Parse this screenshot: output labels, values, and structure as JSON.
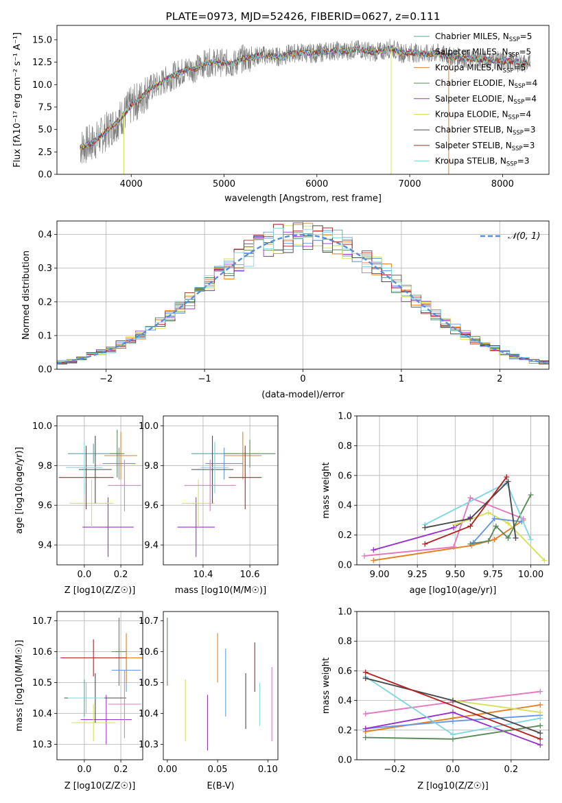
{
  "chart_data": [
    {
      "id": "spectrum",
      "type": "line",
      "title": "PLATE=0973, MJD=52426, FIBERID=0627, z=0.111",
      "xlabel": "wavelength [Angstrom, rest frame]",
      "ylabel": "Flux [fλ10⁻¹⁷ erg cm⁻² s⁻¹ A⁻¹]",
      "xlim": [
        3200,
        8500
      ],
      "ylim": [
        0,
        16.6
      ],
      "xticks": [
        4000,
        5000,
        6000,
        7000,
        8000
      ],
      "yticks": [
        0.0,
        2.5,
        5.0,
        7.5,
        10.0,
        12.5,
        15.0
      ],
      "legend_position": "right",
      "data_curve": {
        "name": "data",
        "color": "#7f7f7f",
        "x": [
          3450,
          3600,
          3700,
          3800,
          3900,
          4000,
          4100,
          4200,
          4300,
          4400,
          4500,
          4600,
          4700,
          4800,
          4900,
          5000,
          5100,
          5200,
          5300,
          5400,
          5500,
          5600,
          5700,
          5800,
          5900,
          6000,
          6100,
          6200,
          6300,
          6400,
          6500,
          6600,
          6700,
          6800,
          6900,
          7000,
          7100,
          7200,
          7300,
          7400,
          7500,
          7600,
          7700,
          7800,
          7900,
          8000,
          8100,
          8200,
          8300
        ],
        "y": [
          3.0,
          3.6,
          4.5,
          5.4,
          6.4,
          7.7,
          8.4,
          9.6,
          10.0,
          10.7,
          11.2,
          11.7,
          11.8,
          12.4,
          12.5,
          12.4,
          12.3,
          12.9,
          13.0,
          13.3,
          13.2,
          13.1,
          13.4,
          13.6,
          13.5,
          13.5,
          13.7,
          13.8,
          13.7,
          13.9,
          13.9,
          13.6,
          13.7,
          14.1,
          13.5,
          13.6,
          13.5,
          13.4,
          13.5,
          13.2,
          13.1,
          12.9,
          12.9,
          12.8,
          12.7,
          12.6,
          12.6,
          12.4,
          12.3
        ]
      },
      "series": [
        {
          "name": "Chabrier MILES, N_SSP=5",
          "label_main": "Chabrier MILES, N",
          "label_sub": "SSP",
          "label_tail": "=5",
          "color": "#5f9ea0"
        },
        {
          "name": "Salpeter MILES, N_SSP=5",
          "label_main": "Salpeter MILES, N",
          "label_sub": "SSP",
          "label_tail": "=5",
          "color": "#6495ed"
        },
        {
          "name": "Kroupa MILES, N_SSP=5",
          "label_main": "Kroupa MILES, N",
          "label_sub": "SSP",
          "label_tail": "=5",
          "color": "#e67e22"
        },
        {
          "name": "Chabrier ELODIE, N_SSP=4",
          "label_main": "Chabrier ELODIE, N",
          "label_sub": "SSP",
          "label_tail": "=4",
          "color": "#5a8a5a"
        },
        {
          "name": "Salpeter ELODIE, N_SSP=4",
          "label_main": "Salpeter ELODIE, N",
          "label_sub": "SSP",
          "label_tail": "=4",
          "color": "#9932cc"
        },
        {
          "name": "Kroupa ELODIE, N_SSP=4",
          "label_main": "Kroupa ELODIE, N",
          "label_sub": "SSP",
          "label_tail": "=4",
          "color": "#d4e157"
        },
        {
          "name": "Chabrier STELIB, N_SSP=3",
          "label_main": "Chabrier STELIB, N",
          "label_sub": "SSP",
          "label_tail": "=3",
          "color": "#4a4a4a"
        },
        {
          "name": "Salpeter STELIB, N_SSP=3",
          "label_main": "Salpeter STELIB, N",
          "label_sub": "SSP",
          "label_tail": "=3",
          "color": "#b22222"
        },
        {
          "name": "Kroupa STELIB, N_SSP=3",
          "label_main": "Kroupa STELIB, N",
          "label_sub": "SSP",
          "label_tail": "=3",
          "color": "#7fd6e0"
        }
      ]
    },
    {
      "id": "residuals",
      "type": "histogram",
      "xlabel": "(data-model)/error",
      "ylabel": "Normed distribution",
      "xlim": [
        -2.5,
        2.5
      ],
      "ylim": [
        0,
        0.44
      ],
      "xticks": [
        -2,
        -1,
        0,
        1,
        2
      ],
      "yticks": [
        0.0,
        0.1,
        0.2,
        0.3,
        0.4
      ],
      "grid": true,
      "reference_curve": {
        "name": "𝒩(0, 1)",
        "color": "#5b8bd6",
        "style": "dashed",
        "legend_position": "top-right"
      }
    },
    {
      "id": "age_vs_Z",
      "type": "errorbar",
      "xlabel": "Z [log10(Z/Z☉)]",
      "ylabel": "age [log10(age/yr)]",
      "xlim": [
        -0.15,
        0.32
      ],
      "ylim": [
        9.3,
        10.05
      ],
      "xticks": [
        0.0,
        0.2
      ],
      "yticks": [
        9.4,
        9.6,
        9.8,
        10.0
      ],
      "grid": true,
      "points": [
        {
          "x": 0.05,
          "xerr": 0.14,
          "y": 9.86,
          "yerr": 0.05,
          "color": "#5f9ea0"
        },
        {
          "x": 0.19,
          "xerr": 0.09,
          "y": 9.81,
          "yerr": 0.08,
          "color": "#6495ed"
        },
        {
          "x": 0.2,
          "xerr": 0.09,
          "y": 9.85,
          "yerr": 0.12,
          "color": "#e67e22"
        },
        {
          "x": 0.18,
          "xerr": 0.04,
          "y": 9.86,
          "yerr": 0.12,
          "color": "#5a8a5a"
        },
        {
          "x": 0.13,
          "xerr": 0.14,
          "y": 9.49,
          "yerr": 0.15,
          "color": "#9932cc"
        },
        {
          "x": 0.04,
          "xerr": 0.12,
          "y": 9.61,
          "yerr": 0.12,
          "color": "#d4e157"
        },
        {
          "x": 0.06,
          "xerr": 0.09,
          "y": 9.78,
          "yerr": 0.17,
          "color": "#4a4a4a"
        },
        {
          "x": 0.01,
          "xerr": 0.15,
          "y": 9.74,
          "yerr": 0.16,
          "color": "#b22222"
        },
        {
          "x": 0.0,
          "xerr": 0.1,
          "y": 9.79,
          "yerr": 0.13,
          "color": "#7fd6e0"
        },
        {
          "x": 0.22,
          "xerr": 0.09,
          "y": 9.7,
          "yerr": 0.13,
          "color": "#e377c2"
        }
      ]
    },
    {
      "id": "age_vs_mass",
      "type": "errorbar",
      "xlabel": "mass [log10(M/M☉)]",
      "ylabel": "",
      "xlim": [
        10.23,
        10.72
      ],
      "ylim": [
        9.3,
        10.05
      ],
      "xticks": [
        10.4,
        10.6
      ],
      "yticks": [
        9.4,
        9.6,
        9.8,
        10.0
      ],
      "grid": true,
      "points": [
        {
          "x": 10.45,
          "xerr": 0.1,
          "y": 9.86,
          "yerr": 0.05,
          "color": "#5f9ea0"
        },
        {
          "x": 10.49,
          "xerr": 0.08,
          "y": 9.81,
          "yerr": 0.08,
          "color": "#6495ed"
        },
        {
          "x": 10.57,
          "xerr": 0.08,
          "y": 9.85,
          "yerr": 0.12,
          "color": "#e67e22"
        },
        {
          "x": 10.6,
          "xerr": 0.11,
          "y": 9.86,
          "yerr": 0.07,
          "color": "#5a8a5a"
        },
        {
          "x": 10.37,
          "xerr": 0.08,
          "y": 9.49,
          "yerr": 0.15,
          "color": "#9932cc"
        },
        {
          "x": 10.38,
          "xerr": 0.07,
          "y": 9.61,
          "yerr": 0.12,
          "color": "#d4e157"
        },
        {
          "x": 10.44,
          "xerr": 0.09,
          "y": 9.78,
          "yerr": 0.17,
          "color": "#4a4a4a"
        },
        {
          "x": 10.58,
          "xerr": 0.07,
          "y": 9.74,
          "yerr": 0.16,
          "color": "#b22222"
        },
        {
          "x": 10.45,
          "xerr": 0.06,
          "y": 9.79,
          "yerr": 0.13,
          "color": "#7fd6e0"
        },
        {
          "x": 10.43,
          "xerr": 0.11,
          "y": 9.7,
          "yerr": 0.13,
          "color": "#e377c2"
        }
      ]
    },
    {
      "id": "weight_vs_age",
      "type": "line",
      "xlabel": "age [log10(age/yr)]",
      "ylabel": "mass weight",
      "xlim": [
        8.85,
        10.12
      ],
      "ylim": [
        0,
        1.0
      ],
      "xticks": [
        9.0,
        9.25,
        9.5,
        9.75,
        10.0
      ],
      "yticks": [
        0.0,
        0.2,
        0.4,
        0.6,
        0.8,
        1.0
      ],
      "grid": true,
      "series": [
        {
          "color": "#9932cc",
          "x": [
            8.96,
            9.49,
            9.6
          ],
          "y": [
            0.1,
            0.25,
            0.32
          ]
        },
        {
          "color": "#e67e22",
          "x": [
            8.96,
            9.61,
            9.76,
            9.95
          ],
          "y": [
            0.03,
            0.13,
            0.17,
            0.3
          ]
        },
        {
          "color": "#e377c2",
          "x": [
            8.9,
            9.49,
            9.6,
            9.95
          ],
          "y": [
            0.06,
            0.12,
            0.45,
            0.31
          ]
        },
        {
          "color": "#d4e157",
          "x": [
            9.5,
            9.72,
            9.85,
            10.09
          ],
          "y": [
            0.27,
            0.35,
            0.28,
            0.03
          ]
        },
        {
          "color": "#6495ed",
          "x": [
            9.62,
            9.76,
            9.94
          ],
          "y": [
            0.15,
            0.31,
            0.29
          ]
        },
        {
          "color": "#5a8a5a",
          "x": [
            9.6,
            9.72,
            9.77,
            9.85,
            10.0
          ],
          "y": [
            0.14,
            0.16,
            0.26,
            0.18,
            0.47
          ]
        },
        {
          "color": "#7fd6e0",
          "x": [
            9.3,
            9.84,
            10.0
          ],
          "y": [
            0.27,
            0.55,
            0.17
          ]
        },
        {
          "color": "#4a4a4a",
          "x": [
            9.3,
            9.6,
            9.85,
            9.9
          ],
          "y": [
            0.25,
            0.31,
            0.56,
            0.18
          ]
        },
        {
          "color": "#b22222",
          "x": [
            9.3,
            9.6,
            9.84
          ],
          "y": [
            0.14,
            0.26,
            0.59
          ]
        }
      ]
    },
    {
      "id": "mass_vs_Z",
      "type": "errorbar",
      "xlabel": "Z [log10(Z/Z☉)]",
      "ylabel": "mass [log10(M/M☉)]",
      "xlim": [
        -0.15,
        0.32
      ],
      "ylim": [
        10.25,
        10.73
      ],
      "xticks": [
        0.0,
        0.2
      ],
      "yticks": [
        10.3,
        10.4,
        10.5,
        10.6,
        10.7
      ],
      "grid": true,
      "points": [
        {
          "x": 0.0,
          "xerr": 0.1,
          "y": 10.45,
          "yerr": 0.06,
          "color": "#5f9ea0"
        },
        {
          "x": 0.23,
          "xerr": 0.08,
          "y": 10.54,
          "yerr": 0.07,
          "color": "#6495ed"
        },
        {
          "x": 0.23,
          "xerr": 0.09,
          "y": 10.58,
          "yerr": 0.08,
          "color": "#e67e22"
        },
        {
          "x": 0.19,
          "xerr": 0.04,
          "y": 10.6,
          "yerr": 0.11,
          "color": "#5a8a5a"
        },
        {
          "x": 0.12,
          "xerr": 0.14,
          "y": 10.38,
          "yerr": 0.08,
          "color": "#9932cc"
        },
        {
          "x": 0.05,
          "xerr": 0.12,
          "y": 10.37,
          "yerr": 0.06,
          "color": "#d4e157"
        },
        {
          "x": 0.06,
          "xerr": 0.17,
          "y": 10.45,
          "yerr": 0.08,
          "color": "#4a4a4a"
        },
        {
          "x": 0.05,
          "xerr": 0.18,
          "y": 10.58,
          "yerr": 0.06,
          "color": "#b22222"
        },
        {
          "x": 0.01,
          "xerr": 0.1,
          "y": 10.45,
          "yerr": 0.05,
          "color": "#7fd6e0"
        },
        {
          "x": 0.22,
          "xerr": 0.09,
          "y": 10.43,
          "yerr": 0.11,
          "color": "#e377c2"
        }
      ]
    },
    {
      "id": "mass_vs_ebv",
      "type": "errorbar",
      "xlabel": "E(B-V)",
      "ylabel": "",
      "xlim": [
        -0.004,
        0.11
      ],
      "ylim": [
        10.25,
        10.73
      ],
      "xticks": [
        0.0,
        0.05,
        0.1
      ],
      "yticks": [
        10.3,
        10.4,
        10.5,
        10.6,
        10.7
      ],
      "grid": false,
      "points": [
        {
          "x": 0.0,
          "yerr": 0.11,
          "y": 10.6,
          "color": "#5a8a5a"
        },
        {
          "x": 0.018,
          "yerr": 0.1,
          "y": 10.41,
          "color": "#d4e157"
        },
        {
          "x": 0.04,
          "yerr": 0.09,
          "y": 10.37,
          "color": "#9932cc"
        },
        {
          "x": 0.05,
          "yerr": 0.08,
          "y": 10.58,
          "color": "#e67e22"
        },
        {
          "x": 0.058,
          "yerr": 0.11,
          "y": 10.5,
          "color": "#6495ed"
        },
        {
          "x": 0.078,
          "yerr": 0.09,
          "y": 10.44,
          "color": "#4a4a4a"
        },
        {
          "x": 0.087,
          "yerr": 0.08,
          "y": 10.55,
          "color": "#b22222"
        },
        {
          "x": 0.092,
          "yerr": 0.07,
          "y": 10.43,
          "color": "#7fd6e0"
        },
        {
          "x": 0.104,
          "yerr": 0.12,
          "y": 10.43,
          "color": "#e377c2"
        }
      ]
    },
    {
      "id": "weight_vs_Z",
      "type": "line",
      "xlabel": "Z [log10(Z/Z☉)]",
      "ylabel": "mass weight",
      "xlim": [
        -0.33,
        0.33
      ],
      "ylim": [
        0,
        1.0
      ],
      "xticks": [
        -0.2,
        0.0,
        0.2
      ],
      "yticks": [
        0.0,
        0.2,
        0.4,
        0.6,
        0.8,
        1.0
      ],
      "grid": true,
      "series": [
        {
          "color": "#e377c2",
          "x": [
            -0.3,
            0.0,
            0.3
          ],
          "y": [
            0.31,
            0.39,
            0.46
          ]
        },
        {
          "color": "#e67e22",
          "x": [
            -0.3,
            0.0,
            0.3
          ],
          "y": [
            0.19,
            0.28,
            0.37
          ]
        },
        {
          "color": "#6495ed",
          "x": [
            -0.3,
            0.0,
            0.3
          ],
          "y": [
            0.21,
            0.26,
            0.3
          ]
        },
        {
          "color": "#9932cc",
          "x": [
            -0.3,
            0.0,
            0.3
          ],
          "y": [
            0.21,
            0.32,
            0.1
          ]
        },
        {
          "color": "#5a8a5a",
          "x": [
            -0.3,
            0.0,
            0.3
          ],
          "y": [
            0.15,
            0.14,
            0.23
          ]
        },
        {
          "color": "#d4e157",
          "x": [
            0.0,
            0.3
          ],
          "y": [
            0.4,
            0.32
          ]
        },
        {
          "color": "#7fd6e0",
          "x": [
            -0.3,
            0.0,
            0.3
          ],
          "y": [
            0.56,
            0.17,
            0.28
          ]
        },
        {
          "color": "#4a4a4a",
          "x": [
            -0.3,
            0.0,
            0.3
          ],
          "y": [
            0.55,
            0.4,
            0.18
          ]
        },
        {
          "color": "#b22222",
          "x": [
            -0.3,
            0.3
          ],
          "y": [
            0.59,
            0.14
          ]
        }
      ]
    }
  ]
}
